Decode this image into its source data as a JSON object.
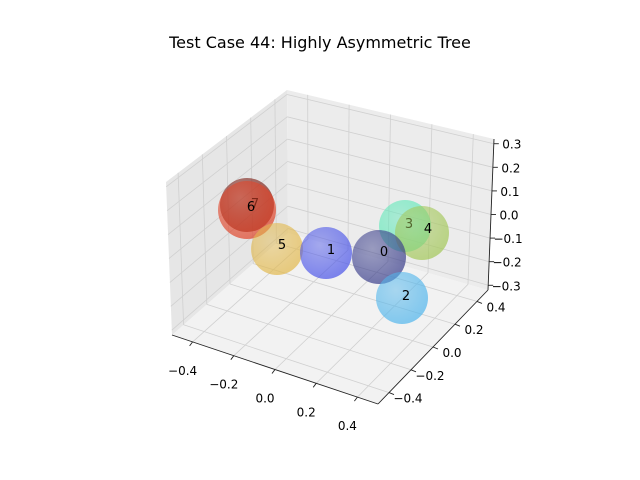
{
  "chart_data": {
    "type": "scatter3d",
    "title": "Test Case 44: Highly Asymmetric Tree",
    "xlabel": "",
    "ylabel": "",
    "zlabel": "",
    "xlim": [
      -0.5,
      0.5
    ],
    "ylim": [
      -0.5,
      0.5
    ],
    "zlim": [
      -0.32,
      0.32
    ],
    "x_ticks": [
      "−0.4",
      "−0.2",
      "0.0",
      "0.2",
      "0.4"
    ],
    "y_ticks": [
      "−0.4",
      "−0.2",
      "0.0",
      "0.2",
      "0.4"
    ],
    "z_ticks": [
      "−0.3",
      "−0.2",
      "−0.1",
      "0.0",
      "0.1",
      "0.2",
      "0.3"
    ],
    "grid": true,
    "nodes": [
      {
        "label": "0",
        "color": "#3b3f8c"
      },
      {
        "label": "1",
        "color": "#4b55e8"
      },
      {
        "label": "2",
        "color": "#52b6ec"
      },
      {
        "label": "3",
        "color": "#5de8b8"
      },
      {
        "label": "4",
        "color": "#a4c85a"
      },
      {
        "label": "5",
        "color": "#e2b94e"
      },
      {
        "label": "6",
        "color": "#e0452a"
      },
      {
        "label": "7",
        "color": "#7a1a10"
      }
    ]
  }
}
